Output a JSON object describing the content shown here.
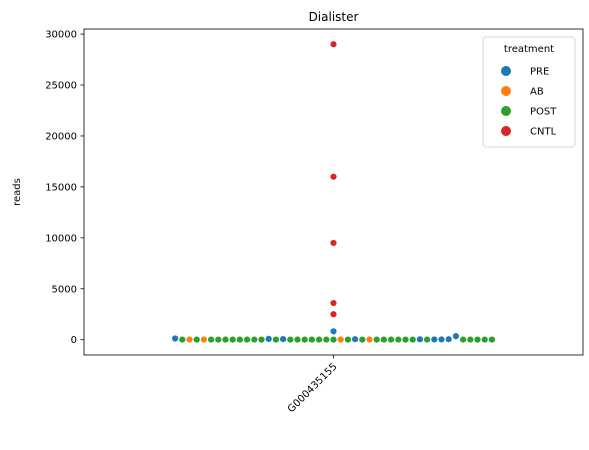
{
  "chart_data": {
    "type": "scatter",
    "title": "Dialister",
    "xlabel": "",
    "ylabel": "reads",
    "ylim": [
      -1500,
      30500
    ],
    "yticks": [
      0,
      5000,
      10000,
      15000,
      20000,
      25000,
      30000
    ],
    "categories": [
      "G000435155"
    ],
    "legend": {
      "title": "treatment",
      "position": "top-right"
    },
    "series": [
      {
        "name": "PRE",
        "color": "#1f77b4",
        "values": [
          120,
          80,
          60,
          50,
          40,
          30,
          30,
          50,
          820,
          350
        ]
      },
      {
        "name": "AB",
        "color": "#ff7f0e",
        "values": [
          20,
          20,
          20,
          20
        ]
      },
      {
        "name": "POST",
        "color": "#2ca02c",
        "values": [
          10,
          10,
          10,
          10,
          10,
          10,
          10,
          10,
          10,
          10,
          10,
          10,
          10,
          10,
          10,
          10,
          10,
          10,
          10,
          10,
          10,
          10,
          10,
          10,
          10,
          10,
          10,
          10,
          10,
          10,
          10,
          10
        ]
      },
      {
        "name": "CNTL",
        "color": "#d62728",
        "values": [
          29000,
          16000,
          9500,
          3600,
          2500
        ]
      }
    ]
  }
}
